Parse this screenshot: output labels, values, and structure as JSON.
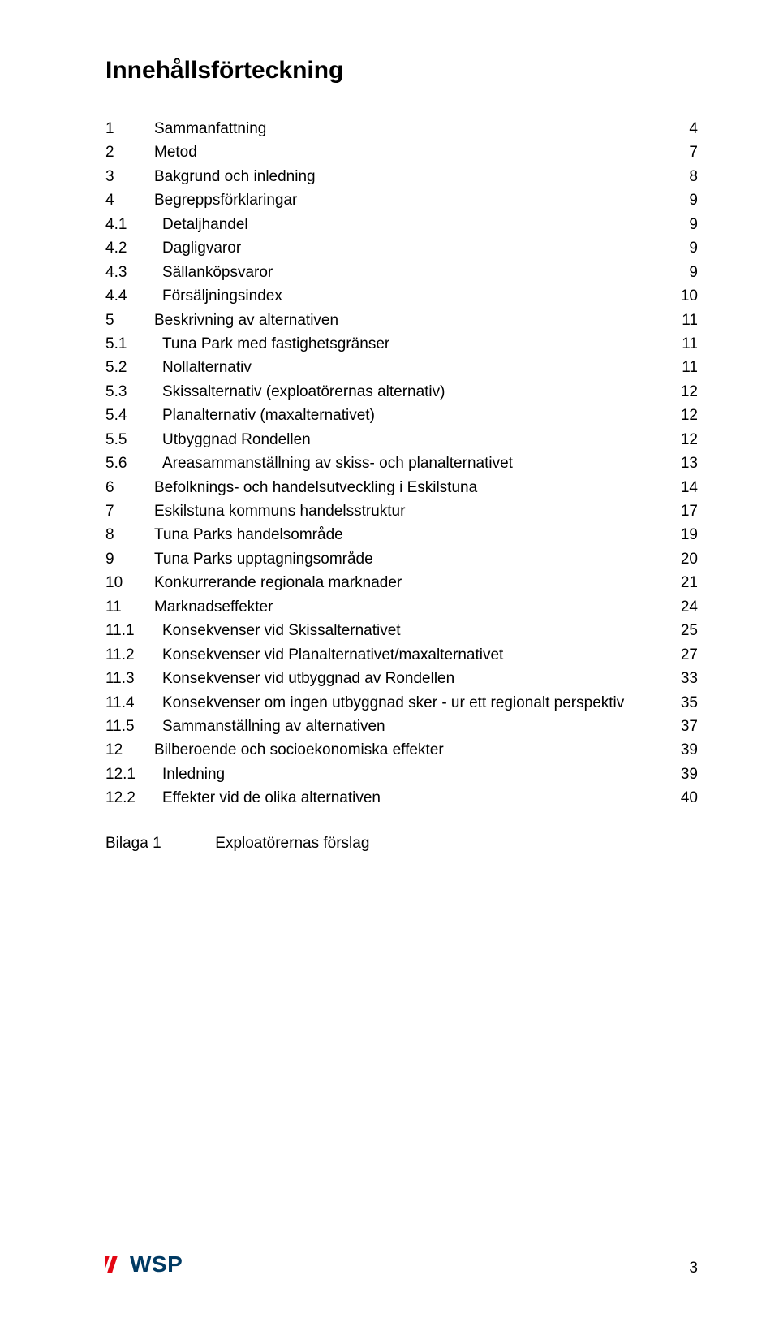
{
  "title": "Innehållsförteckning",
  "toc": [
    {
      "num": "1",
      "label": "Sammanfattning",
      "page": "4",
      "level": 1
    },
    {
      "num": "2",
      "label": "Metod",
      "page": "7",
      "level": 1
    },
    {
      "num": "3",
      "label": "Bakgrund och inledning",
      "page": "8",
      "level": 1
    },
    {
      "num": "4",
      "label": "Begreppsförklaringar",
      "page": "9",
      "level": 1
    },
    {
      "num": "4.1",
      "label": "Detaljhandel",
      "page": "9",
      "level": 2
    },
    {
      "num": "4.2",
      "label": "Dagligvaror",
      "page": "9",
      "level": 2
    },
    {
      "num": "4.3",
      "label": "Sällanköpsvaror",
      "page": "9",
      "level": 2
    },
    {
      "num": "4.4",
      "label": "Försäljningsindex",
      "page": "10",
      "level": 2
    },
    {
      "num": "5",
      "label": "Beskrivning av alternativen",
      "page": "11",
      "level": 1
    },
    {
      "num": "5.1",
      "label": "Tuna Park med fastighetsgränser",
      "page": "11",
      "level": 2
    },
    {
      "num": "5.2",
      "label": "Nollalternativ",
      "page": "11",
      "level": 2
    },
    {
      "num": "5.3",
      "label": "Skissalternativ (exploatörernas alternativ)",
      "page": "12",
      "level": 2
    },
    {
      "num": "5.4",
      "label": "Planalternativ (maxalternativet)",
      "page": "12",
      "level": 2
    },
    {
      "num": "5.5",
      "label": "Utbyggnad Rondellen",
      "page": "12",
      "level": 2
    },
    {
      "num": "5.6",
      "label": "Areasammanställning av skiss- och planalternativet",
      "page": "13",
      "level": 2
    },
    {
      "num": "6",
      "label": "Befolknings- och handelsutveckling i Eskilstuna",
      "page": "14",
      "level": 1
    },
    {
      "num": "7",
      "label": "Eskilstuna kommuns handelsstruktur",
      "page": "17",
      "level": 1
    },
    {
      "num": "8",
      "label": "Tuna Parks handelsområde",
      "page": "19",
      "level": 1
    },
    {
      "num": "9",
      "label": "Tuna Parks upptagningsområde",
      "page": "20",
      "level": 1
    },
    {
      "num": "10",
      "label": "Konkurrerande regionala marknader",
      "page": "21",
      "level": 1
    },
    {
      "num": "11",
      "label": "Marknadseffekter",
      "page": "24",
      "level": 1
    },
    {
      "num": "11.1",
      "label": "Konsekvenser vid Skissalternativet",
      "page": "25",
      "level": 2
    },
    {
      "num": "11.2",
      "label": "Konsekvenser vid Planalternativet/maxalternativet",
      "page": "27",
      "level": 2
    },
    {
      "num": "11.3",
      "label": "Konsekvenser vid utbyggnad av Rondellen",
      "page": "33",
      "level": 2
    },
    {
      "num": "11.4",
      "label": "Konsekvenser om ingen utbyggnad sker - ur ett regionalt perspektiv",
      "page": "35",
      "level": 2
    },
    {
      "num": "11.5",
      "label": "Sammanställning av alternativen",
      "page": "37",
      "level": 2
    },
    {
      "num": "12",
      "label": "Bilberoende och socioekonomiska effekter",
      "page": "39",
      "level": 1
    },
    {
      "num": "12.1",
      "label": "Inledning",
      "page": "39",
      "level": 2
    },
    {
      "num": "12.2",
      "label": "Effekter vid de olika alternativen",
      "page": "40",
      "level": 2
    }
  ],
  "appendix": {
    "label": "Bilaga 1",
    "text": "Exploatörernas förslag"
  },
  "logo": {
    "text": "WSP",
    "bar_color": "#e30613",
    "text_color": "#003a63"
  },
  "page_number": "3"
}
